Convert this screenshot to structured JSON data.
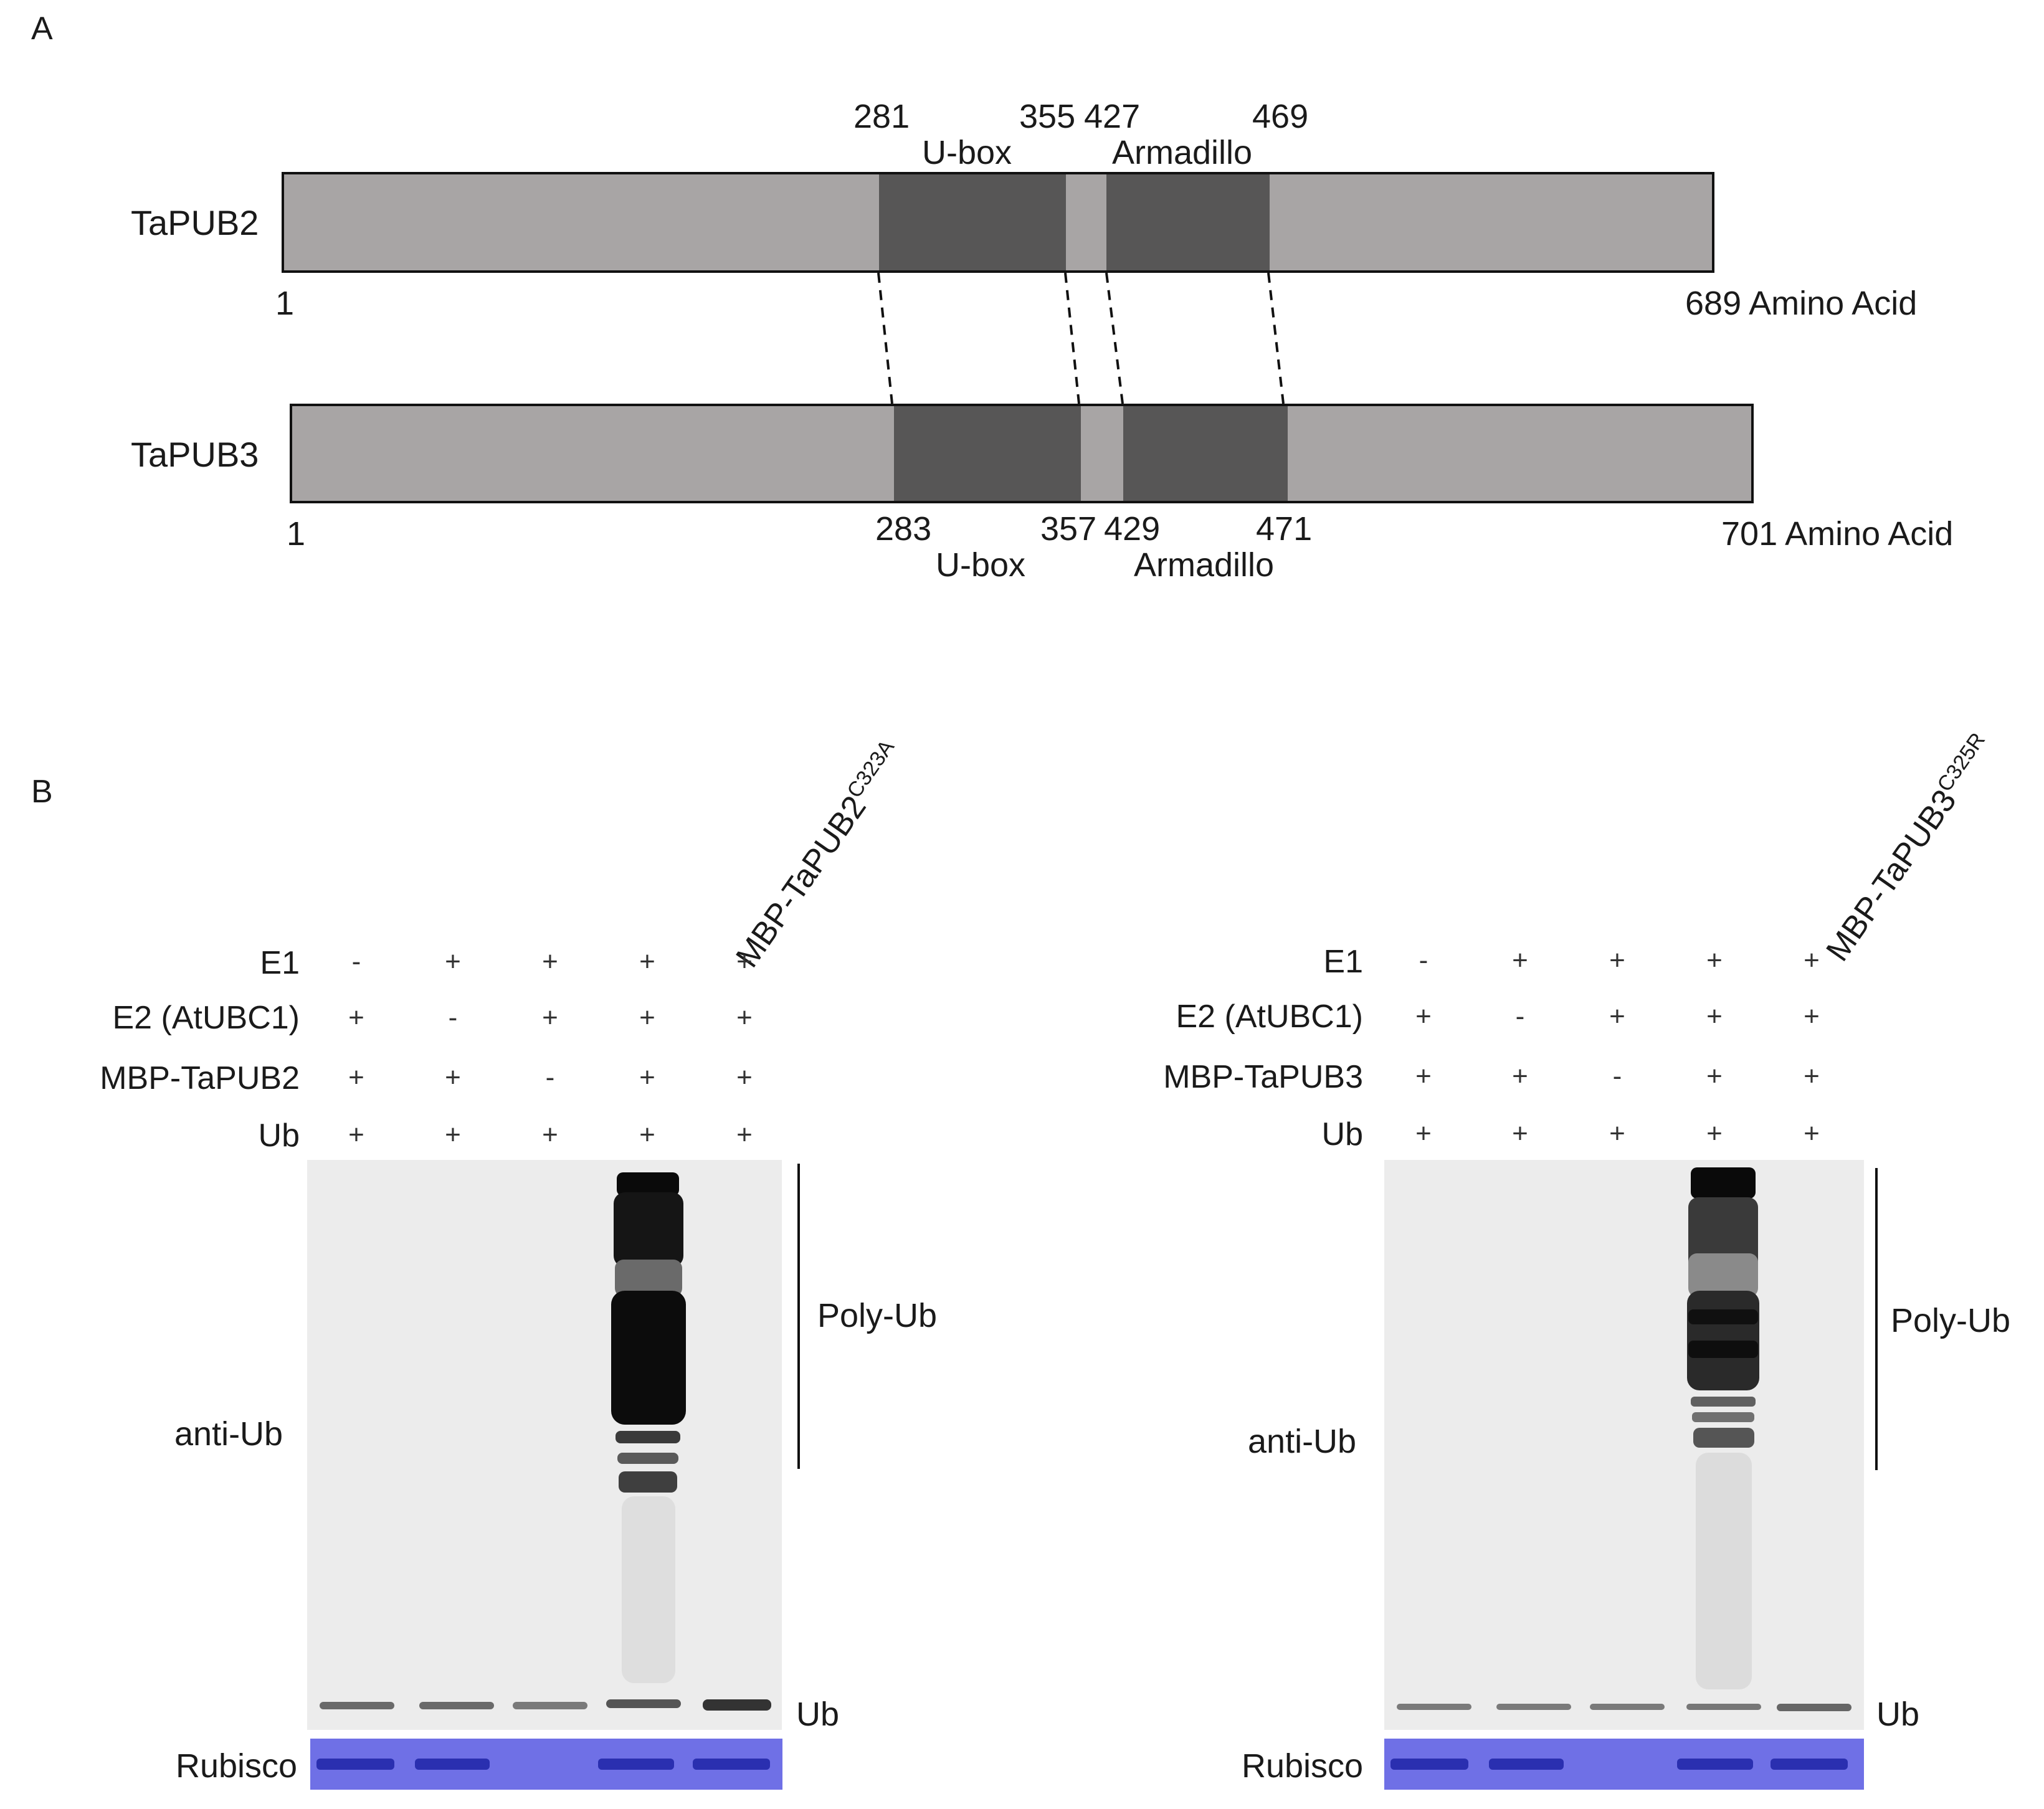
{
  "panel_a": {
    "label": "A",
    "proteins": [
      {
        "name": "TaPUB2",
        "start": "1",
        "end_label": "689 Amino Acid",
        "length": 689,
        "ubox_start": "281",
        "ubox_end": "355",
        "arm_start": "427",
        "arm_end": "469",
        "ubox_label": "U-box",
        "arm_label": "Armadillo"
      },
      {
        "name": "TaPUB3",
        "start": "1",
        "end_label": "701 Amino Acid",
        "length": 701,
        "ubox_start": "283",
        "ubox_end": "357",
        "arm_start": "429",
        "arm_end": "471",
        "ubox_label": "U-box",
        "arm_label": "Armadillo"
      }
    ],
    "colors": {
      "bar": "#a8a5a5",
      "domain": "#575656"
    }
  },
  "panel_b": {
    "label": "B",
    "blots": [
      {
        "mutant_label": "MBP-TaPUB2",
        "mutant_sup": "C323A",
        "rows": [
          {
            "label": "E1",
            "values": [
              "-",
              "+",
              "+",
              "+",
              "+"
            ]
          },
          {
            "label": "E2 (AtUBC1)",
            "values": [
              "+",
              "-",
              "+",
              "+",
              "+"
            ]
          },
          {
            "label": "MBP-TaPUB2",
            "values": [
              "+",
              "+",
              "-",
              "+",
              "+"
            ]
          },
          {
            "label": "Ub",
            "values": [
              "+",
              "+",
              "+",
              "+",
              "+"
            ]
          }
        ],
        "antibody_label": "anti-Ub",
        "polyub_label": "Poly-Ub",
        "ub_label": "Ub",
        "loading_label": "Rubisco",
        "rubisco_lanes_present": [
          true,
          true,
          false,
          true,
          true
        ],
        "polyub_lane": 4
      },
      {
        "mutant_label": "MBP-TaPUB3",
        "mutant_sup": "C325R",
        "rows": [
          {
            "label": "E1",
            "values": [
              "-",
              "+",
              "+",
              "+",
              "+"
            ]
          },
          {
            "label": "E2 (AtUBC1)",
            "values": [
              "+",
              "-",
              "+",
              "+",
              "+"
            ]
          },
          {
            "label": "MBP-TaPUB3",
            "values": [
              "+",
              "+",
              "-",
              "+",
              "+"
            ]
          },
          {
            "label": "Ub",
            "values": [
              "+",
              "+",
              "+",
              "+",
              "+"
            ]
          }
        ],
        "antibody_label": "anti-Ub",
        "polyub_label": "Poly-Ub",
        "ub_label": "Ub",
        "loading_label": "Rubisco",
        "rubisco_lanes_present": [
          true,
          true,
          false,
          true,
          true
        ],
        "polyub_lane": 4
      }
    ],
    "colors": {
      "gel": "#ececec",
      "band": "#111111",
      "rubisco_bg": "#6f70e6",
      "rubisco_band": "#2a2fb0"
    }
  }
}
